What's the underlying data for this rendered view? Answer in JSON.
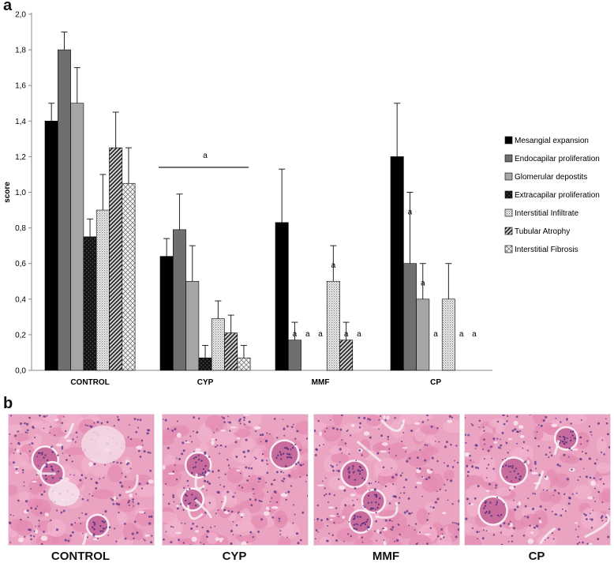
{
  "panel_a_label": "a",
  "panel_b_label": "b",
  "chart_data": {
    "type": "bar",
    "title": "",
    "xlabel": "",
    "ylabel": "score",
    "ylim": [
      0,
      2.0
    ],
    "yticks": [
      "0,0",
      "0,2",
      "0,4",
      "0,6",
      "0,8",
      "1,0",
      "1,2",
      "1,4",
      "1,6",
      "1,8",
      "2,0"
    ],
    "categories": [
      "CONTROL",
      "CYP",
      "MMF",
      "CP"
    ],
    "series": [
      {
        "name": "Mesangial expansion",
        "fill": "solid-black",
        "values": [
          1.4,
          0.64,
          0.83,
          1.2
        ],
        "errors": [
          0.1,
          0.1,
          0.3,
          0.3
        ],
        "letters": [
          "",
          "",
          "",
          ""
        ]
      },
      {
        "name": "Endocapilar proliferation",
        "fill": "dark-gray",
        "values": [
          1.8,
          0.79,
          0.17,
          0.6
        ],
        "errors": [
          0.1,
          0.2,
          0.1,
          0.4
        ],
        "letters": [
          "",
          "",
          "a",
          "a"
        ]
      },
      {
        "name": "Glomerular depostits",
        "fill": "light-gray",
        "values": [
          1.5,
          0.5,
          0.0,
          0.4
        ],
        "errors": [
          0.2,
          0.2,
          0.0,
          0.2
        ],
        "letters": [
          "",
          "",
          "a",
          "a"
        ]
      },
      {
        "name": "Extracapilar proliferation",
        "fill": "dark-crosshatch",
        "values": [
          0.75,
          0.07,
          0.0,
          0.0
        ],
        "errors": [
          0.1,
          0.07,
          0.0,
          0.0
        ],
        "letters": [
          "",
          "",
          "a",
          "a"
        ]
      },
      {
        "name": "Interstitial Infiltrate",
        "fill": "dotted",
        "values": [
          0.9,
          0.29,
          0.5,
          0.4
        ],
        "errors": [
          0.2,
          0.1,
          0.2,
          0.2
        ],
        "letters": [
          "",
          "",
          "a",
          ""
        ]
      },
      {
        "name": "Tubular Atrophy",
        "fill": "diagonal-stripes",
        "values": [
          1.25,
          0.21,
          0.17,
          0.0
        ],
        "errors": [
          0.2,
          0.1,
          0.1,
          0.0
        ],
        "letters": [
          "",
          "",
          "a",
          "a"
        ]
      },
      {
        "name": "Interstitial Fibrosis",
        "fill": "light-crosshatch",
        "values": [
          1.05,
          0.07,
          0.0,
          0.0
        ],
        "errors": [
          0.2,
          0.07,
          0.0,
          0.0
        ],
        "letters": [
          "",
          "",
          "a",
          "a"
        ]
      }
    ],
    "group_annotation": {
      "category": "CYP",
      "letter": "a",
      "level": 1.14
    },
    "legend_position": "right",
    "grid": false
  },
  "histology_panels": [
    {
      "label": "CONTROL"
    },
    {
      "label": "CYP"
    },
    {
      "label": "MMF"
    },
    {
      "label": "CP"
    }
  ]
}
